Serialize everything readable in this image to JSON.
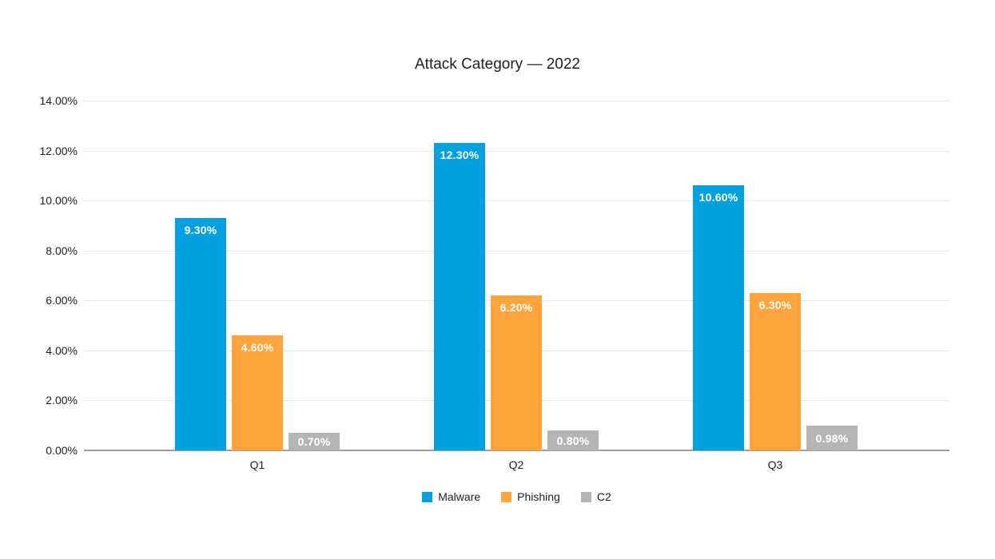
{
  "chart_data": {
    "type": "bar",
    "title": "Attack Category — 2022",
    "categories": [
      "Q1",
      "Q2",
      "Q3"
    ],
    "series": [
      {
        "name": "Malware",
        "color": "#04a1e0",
        "values": [
          9.3,
          12.3,
          10.6
        ],
        "labels": [
          "9.30%",
          "12.30%",
          "10.60%"
        ]
      },
      {
        "name": "Phishing",
        "color": "#ffa33c",
        "values": [
          4.6,
          6.2,
          6.3
        ],
        "labels": [
          "4.60%",
          "6.20%",
          "6.30%"
        ]
      },
      {
        "name": "C2",
        "color": "#b5b5b5",
        "values": [
          0.7,
          0.8,
          0.98
        ],
        "labels": [
          "0.70%",
          "0.80%",
          "0.98%"
        ]
      }
    ],
    "y_axis": {
      "min": 0,
      "max": 14,
      "tick_step": 2,
      "tick_labels": [
        "0.00%",
        "2.00%",
        "4.00%",
        "6.00%",
        "8.00%",
        "10.00%",
        "12.00%",
        "14.00%"
      ],
      "format": "percent"
    },
    "grid": true,
    "legend_position": "bottom",
    "colors": {
      "gridline": "#e6e6e6",
      "axis_line": "#9e9e9e",
      "text": "#1f1f1f",
      "bar_label_text": "#ffffff",
      "background": "#ffffff"
    }
  }
}
